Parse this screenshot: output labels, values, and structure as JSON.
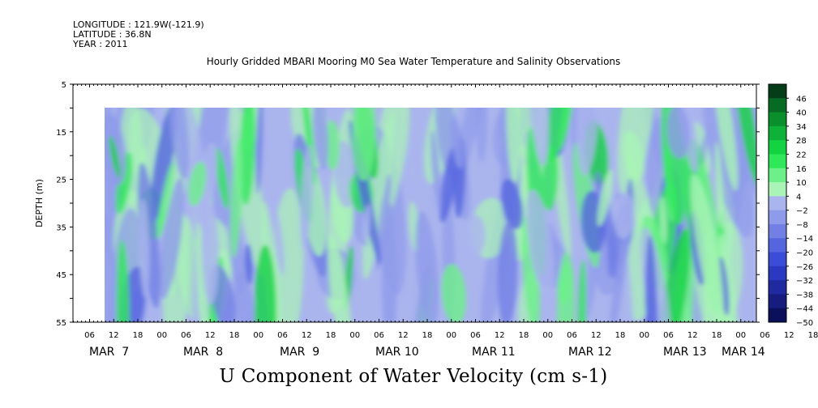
{
  "header": {
    "longitude": "LONGITUDE : 121.9W(-121.9)",
    "latitude": "LATITUDE : 36.8N",
    "year": "YEAR : 2011"
  },
  "chart_data": {
    "type": "heatmap",
    "title": "Hourly Gridded MBARI Mooring M0 Sea Water Temperature and Salinity Observations",
    "variable_label": "U Component of Water Velocity (cm s-1)",
    "ylabel": "DEPTH (m)",
    "ylim": [
      5,
      55
    ],
    "y_inverted": true,
    "y_ticks": [
      5,
      15,
      25,
      35,
      45,
      55
    ],
    "data_depth_range": [
      10,
      55
    ],
    "x_hour_ticks": [
      "06",
      "12",
      "18",
      "00",
      "06",
      "12",
      "18",
      "00",
      "06",
      "12",
      "18",
      "00",
      "06",
      "12",
      "18",
      "00",
      "06",
      "12",
      "18",
      "00",
      "06",
      "12",
      "18",
      "00",
      "06",
      "12",
      "18",
      "00",
      "06",
      "12",
      "18",
      "00"
    ],
    "x_date_labels": [
      "MAR  7",
      "MAR  8",
      "MAR  9",
      "MAR 10",
      "MAR 11",
      "MAR 12",
      "MAR 13",
      "MAR 14"
    ],
    "colorbar": {
      "levels": [
        46,
        40,
        34,
        28,
        22,
        16,
        10,
        4,
        -2,
        -8,
        -14,
        -20,
        -26,
        -32,
        -38,
        -44,
        -50
      ],
      "colors": [
        "#053d18",
        "#086b24",
        "#0a8f2d",
        "#0eb238",
        "#14d343",
        "#2ee85a",
        "#6df08a",
        "#a9f4b6",
        "#aab5ee",
        "#8e9bea",
        "#7280e5",
        "#5565e0",
        "#3b4dd8",
        "#2a38c2",
        "#1f2aa0",
        "#161d7e",
        "#0c105a"
      ]
    },
    "grid": false,
    "legend_position": "right"
  }
}
